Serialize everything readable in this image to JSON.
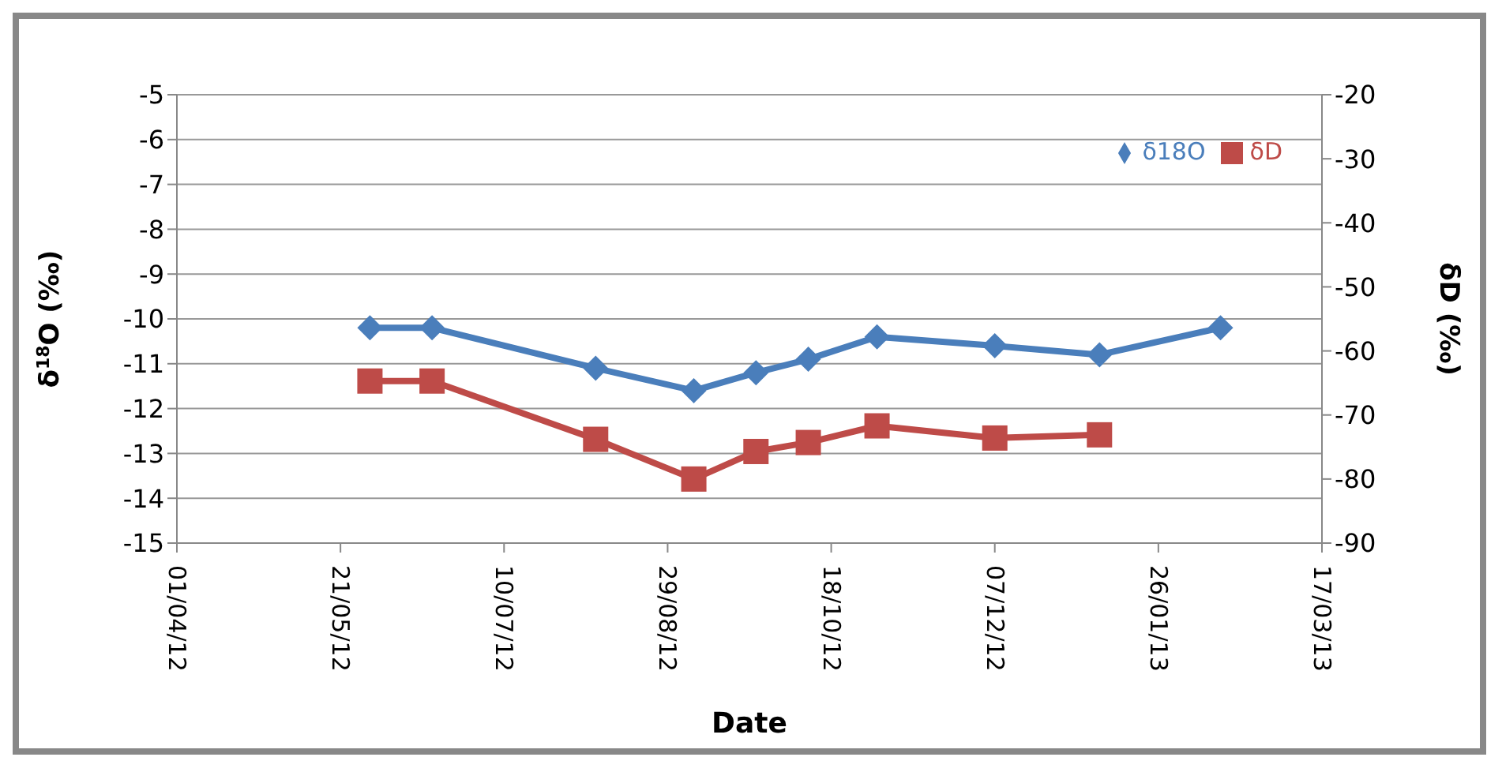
{
  "chart_data": {
    "type": "line",
    "xlabel": "Date",
    "ylabel": "δ$^{18}$O (‰)",
    "y2label": "δD (‰)",
    "x": [
      "2012-05-30",
      "2012-06-18",
      "2012-08-07",
      "2012-09-06",
      "2012-09-25",
      "2012-10-11",
      "2012-11-01",
      "2012-12-07",
      "2013-01-08",
      "2013-02-14"
    ],
    "series": [
      {
        "name": "δ18O",
        "color": "#4a7ebb",
        "marker": "diamond",
        "values": [
          -10.2,
          -10.2,
          -11.1,
          -11.6,
          -11.2,
          -10.9,
          -10.4,
          -10.6,
          -10.8,
          -10.2
        ]
      },
      {
        "name": "δD",
        "color": "#be4b48",
        "marker": "square",
        "axis": "y2",
        "values": [
          -64.7,
          -64.7,
          -73.8,
          -80,
          -75.7,
          -74.3,
          -71.7,
          -73.6,
          -73.1,
          null
        ]
      }
    ],
    "xlim": [
      "2012-04-01",
      "2013-03-17"
    ],
    "xticks": [
      {
        "value": "2012-04-01",
        "label": "01/04/12"
      },
      {
        "value": "2012-05-21",
        "label": "21/05/12"
      },
      {
        "value": "2012-07-10",
        "label": "10/07/12"
      },
      {
        "value": "2012-08-29",
        "label": "29/08/12"
      },
      {
        "value": "2012-10-18",
        "label": "18/10/12"
      },
      {
        "value": "2012-12-07",
        "label": "07/12/12"
      },
      {
        "value": "2013-01-26",
        "label": "26/01/13"
      },
      {
        "value": "2013-03-17",
        "label": "17/03/13"
      }
    ],
    "ylim": [
      -15,
      -5
    ],
    "yticks": [
      -15,
      -14,
      -13,
      -12,
      -11,
      -10,
      -9,
      -8,
      -7,
      -6,
      -5
    ],
    "y2lim": [
      -90,
      -20
    ],
    "y2ticks": [
      -90,
      -80,
      -70,
      -60,
      -50,
      -40,
      -30,
      -20
    ],
    "grid": "y",
    "legend": "top right"
  }
}
